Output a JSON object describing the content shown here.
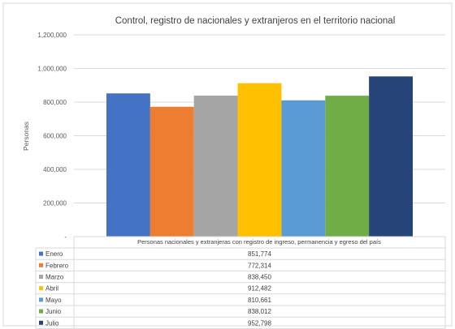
{
  "chart_data": {
    "type": "bar",
    "title": "Control, registro de nacionales y extranjeros en el territorio nacional",
    "ylabel": "Personas",
    "xlabel": "",
    "category_label": "Personas nacionales y extranjeras con registro de ingreso, permanencia y egreso del país",
    "ylim": [
      0,
      1200000
    ],
    "y_ticks": [
      0,
      200000,
      400000,
      600000,
      800000,
      1000000,
      1200000
    ],
    "y_tick_labels": [
      "-",
      "200,000",
      "400,000",
      "600,000",
      "800,000",
      "1,000,000",
      "1,200,000"
    ],
    "grid": true,
    "legend": "data-table-bottom",
    "series": [
      {
        "name": "Enero",
        "value": 851774,
        "label": "851,774",
        "color": "#4472C4"
      },
      {
        "name": "Febrero",
        "value": 772314,
        "label": "772,314",
        "color": "#ED7D31"
      },
      {
        "name": "Marzo",
        "value": 838450,
        "label": "838,450",
        "color": "#A5A5A5"
      },
      {
        "name": "Abril",
        "value": 912482,
        "label": "912,482",
        "color": "#FFC000"
      },
      {
        "name": "Mayo",
        "value": 810661,
        "label": "810,661",
        "color": "#5B9BD5"
      },
      {
        "name": "Junio",
        "value": 838012,
        "label": "838,012",
        "color": "#70AD47"
      },
      {
        "name": "Julio",
        "value": 952798,
        "label": "952,798",
        "color": "#264478"
      }
    ]
  }
}
